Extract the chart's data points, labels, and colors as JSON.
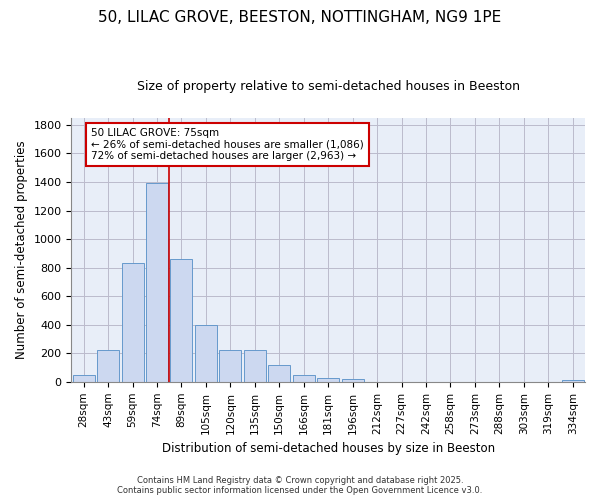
{
  "title_line1": "50, LILAC GROVE, BEESTON, NOTTINGHAM, NG9 1PE",
  "title_line2": "Size of property relative to semi-detached houses in Beeston",
  "xlabel": "Distribution of semi-detached houses by size in Beeston",
  "ylabel": "Number of semi-detached properties",
  "categories": [
    "28sqm",
    "43sqm",
    "59sqm",
    "74sqm",
    "89sqm",
    "105sqm",
    "120sqm",
    "135sqm",
    "150sqm",
    "166sqm",
    "181sqm",
    "196sqm",
    "212sqm",
    "227sqm",
    "242sqm",
    "258sqm",
    "273sqm",
    "288sqm",
    "303sqm",
    "319sqm",
    "334sqm"
  ],
  "values": [
    50,
    220,
    830,
    1390,
    860,
    400,
    220,
    220,
    120,
    50,
    30,
    20,
    0,
    0,
    0,
    0,
    0,
    0,
    0,
    0,
    15
  ],
  "bar_color": "#ccd8f0",
  "bar_edge_color": "#6699cc",
  "grid_color": "#bbbbcc",
  "background_color": "#ffffff",
  "plot_bg_color": "#e8eef8",
  "red_line_x": 3.5,
  "annotation_text_line1": "50 LILAC GROVE: 75sqm",
  "annotation_text_line2": "← 26% of semi-detached houses are smaller (1,086)",
  "annotation_text_line3": "72% of semi-detached houses are larger (2,963) →",
  "annotation_box_color": "#ffffff",
  "annotation_box_edge_color": "#cc0000",
  "red_line_color": "#cc0000",
  "footer_line1": "Contains HM Land Registry data © Crown copyright and database right 2025.",
  "footer_line2": "Contains public sector information licensed under the Open Government Licence v3.0.",
  "ylim": [
    0,
    1850
  ],
  "yticks": [
    0,
    200,
    400,
    600,
    800,
    1000,
    1200,
    1400,
    1600,
    1800
  ]
}
